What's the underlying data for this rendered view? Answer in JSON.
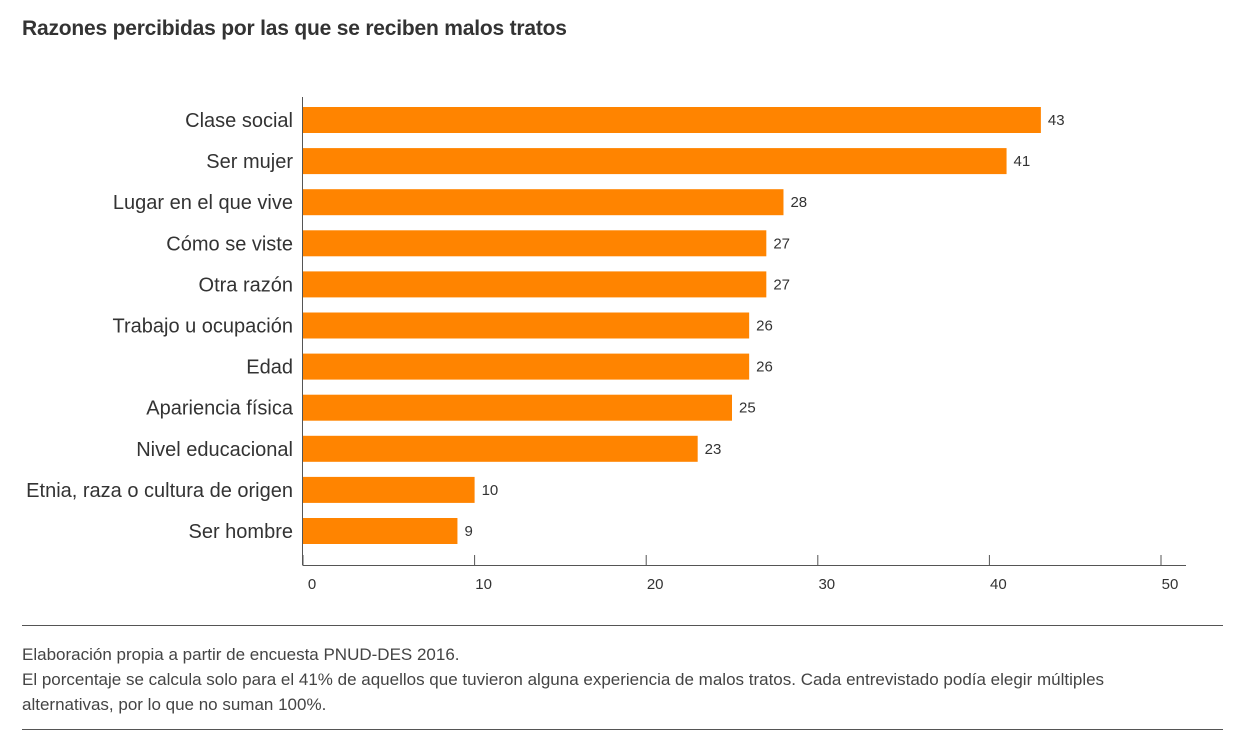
{
  "title": "Razones percibidas por las que se reciben malos tratos",
  "footnotes": {
    "source": "Elaboración propia a partir de encuesta PNUD-DES 2016.",
    "note": "El porcentaje se calcula solo para el 41% de aquellos que tuvieron alguna experiencia de malos tratos. Cada entrevistado podía elegir múltiples alternativas, por lo que no suman 100%."
  },
  "colors": {
    "bar": "#FF8400",
    "axis": "#555555",
    "text": "#333333"
  },
  "chart_data": {
    "type": "bar",
    "orientation": "horizontal",
    "title": "Razones percibidas por las que se reciben malos tratos",
    "categories": [
      "Clase social",
      "Ser mujer",
      "Lugar en el que vive",
      "Cómo se viste",
      "Otra razón",
      "Trabajo u ocupación",
      "Edad",
      "Apariencia física",
      "Nivel educacional",
      "Etnia, raza o cultura de origen",
      "Ser hombre"
    ],
    "values": [
      43,
      41,
      28,
      27,
      27,
      26,
      26,
      25,
      23,
      10,
      9
    ],
    "xlim": [
      0,
      50
    ],
    "xticks": [
      0,
      10,
      20,
      30,
      40,
      50
    ],
    "xlabel": "",
    "ylabel": "",
    "grid": false,
    "legend": "none"
  }
}
